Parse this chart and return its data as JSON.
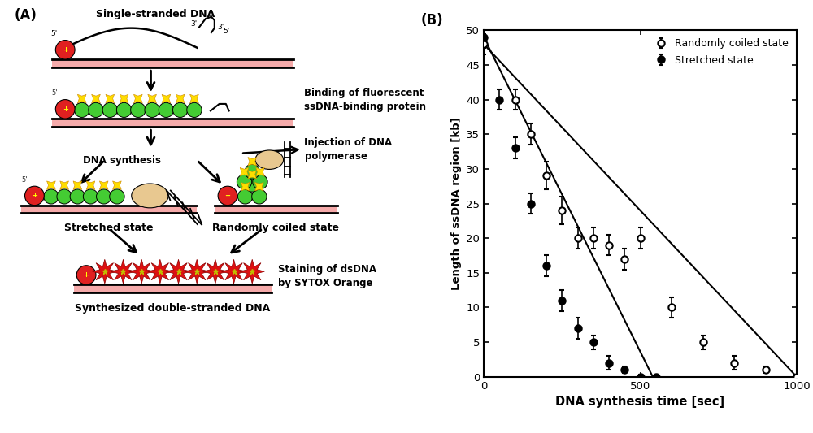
{
  "panel_b": {
    "xlabel": "DNA synthesis time [sec]",
    "ylabel": "Length of ssDNA region [kb]",
    "xlim": [
      0,
      1000
    ],
    "ylim": [
      0,
      50
    ],
    "xticks": [
      0,
      500,
      1000
    ],
    "yticks": [
      0,
      5,
      10,
      15,
      20,
      25,
      30,
      35,
      40,
      45,
      50
    ],
    "open_circles": {
      "x": [
        0,
        100,
        150,
        200,
        250,
        300,
        350,
        400,
        450,
        500,
        600,
        700,
        800,
        900,
        1000
      ],
      "y": [
        48,
        40,
        35,
        29,
        24,
        20,
        20,
        19,
        17,
        20,
        10,
        5,
        2,
        1,
        0
      ],
      "yerr": [
        1.5,
        1.5,
        1.5,
        2.0,
        2.0,
        1.5,
        1.5,
        1.5,
        1.5,
        1.5,
        1.5,
        1.0,
        1.0,
        0.5,
        0.3
      ]
    },
    "filled_circles": {
      "x": [
        0,
        50,
        100,
        150,
        200,
        250,
        300,
        350,
        400,
        450,
        500,
        550
      ],
      "y": [
        49,
        40,
        33,
        25,
        16,
        11,
        7,
        5,
        2,
        1,
        0,
        0
      ],
      "yerr": [
        1.5,
        1.5,
        1.5,
        1.5,
        1.5,
        1.5,
        1.5,
        1.0,
        1.0,
        0.5,
        0.3,
        0.3
      ]
    },
    "open_fit_x": [
      0,
      1000
    ],
    "open_fit_y": [
      48,
      0
    ],
    "filled_fit_x": [
      0,
      540
    ],
    "filled_fit_y": [
      49,
      0
    ],
    "legend_open": "Randomly coiled state",
    "legend_filled": "Stretched state",
    "background_color": "#ffffff",
    "line_color": "#000000",
    "marker_color_open": "#ffffff",
    "marker_color_filled": "#000000"
  },
  "panel_a_label": "(A)",
  "panel_b_label": "(B)"
}
